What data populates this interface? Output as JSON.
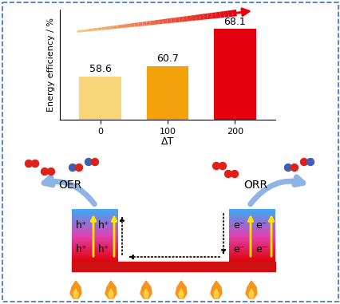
{
  "chart_data": {
    "type": "bar",
    "categories": [
      "0",
      "100",
      "200"
    ],
    "values": [
      58.6,
      60.7,
      68.1
    ],
    "colors": [
      "#f9d57a",
      "#f4a20c",
      "#e3000f"
    ],
    "x_label": "ΔT",
    "y_label": "Energy efficiency / %",
    "ylim": [
      50,
      72
    ],
    "yticks": [],
    "data_labels": true,
    "tick_labels": "x"
  },
  "diagram": {
    "left_reaction": "OER",
    "right_reaction": "ORR",
    "left_carrier": "h⁺",
    "right_carrier": "e⁻"
  }
}
